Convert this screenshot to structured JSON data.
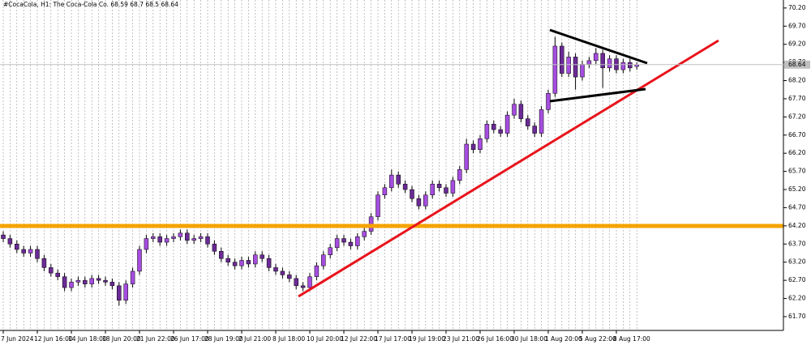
{
  "chart_data": {
    "type": "candlestick",
    "symbol": "#CocaCola, H1:",
    "instrument": "The Coca-Cola Co.",
    "categories": [
      "7 Jun 2024",
      null,
      null,
      null,
      null,
      "12 Jun 16:00",
      null,
      null,
      null,
      null,
      "14 Jun 18:00",
      null,
      null,
      null,
      null,
      "18 Jun 20:00",
      null,
      null,
      null,
      null,
      "21 Jun 22:00",
      null,
      null,
      null,
      null,
      "26 Jun 17:00",
      null,
      null,
      null,
      null,
      "28 Jun 19:00",
      null,
      null,
      null,
      null,
      "2 Jul 21:00",
      null,
      null,
      null,
      null,
      "8 Jul 18:00",
      null,
      null,
      null,
      null,
      "10 Jul 20:00",
      null,
      null,
      null,
      null,
      "12 Jul 22:00",
      null,
      null,
      null,
      null,
      "17 Jul 17:00",
      null,
      null,
      null,
      null,
      "19 Jul 19:00",
      null,
      null,
      null,
      null,
      "23 Jul 21:00",
      null,
      null,
      null,
      null,
      "26 Jul 16:00",
      null,
      null,
      null,
      null,
      "30 Jul 18:00",
      null,
      null,
      null,
      null,
      "1 Aug 20:00",
      null,
      null,
      null,
      null,
      "5 Aug 22:00",
      null,
      null,
      null,
      null,
      "8 Aug 17:00",
      null,
      null,
      null
    ],
    "open": [
      63.95,
      63.85,
      63.7,
      63.55,
      63.45,
      63.55,
      63.3,
      63.05,
      62.9,
      62.8,
      62.5,
      62.65,
      62.7,
      62.6,
      62.75,
      62.7,
      62.65,
      62.55,
      62.15,
      62.6,
      62.95,
      63.55,
      63.85,
      63.9,
      63.75,
      63.85,
      63.9,
      64.0,
      63.8,
      63.85,
      63.9,
      63.7,
      63.5,
      63.3,
      63.2,
      63.1,
      63.25,
      63.15,
      63.4,
      63.3,
      63.05,
      62.95,
      62.85,
      62.75,
      62.55,
      62.5,
      62.8,
      63.1,
      63.4,
      63.6,
      63.85,
      63.75,
      63.65,
      63.9,
      64.05,
      64.45,
      65.05,
      65.25,
      65.6,
      65.35,
      65.2,
      64.95,
      64.75,
      65.05,
      65.35,
      65.25,
      65.1,
      65.45,
      65.75,
      66.45,
      66.3,
      66.6,
      67.0,
      66.85,
      66.75,
      67.25,
      67.55,
      67.15,
      66.95,
      66.75,
      67.4,
      67.85,
      69.15,
      68.4,
      68.85,
      68.3,
      68.65,
      68.75,
      68.95,
      68.55,
      68.8,
      68.5,
      68.7,
      68.59
    ],
    "high": [
      64.05,
      63.95,
      63.8,
      63.65,
      63.65,
      63.65,
      63.4,
      63.15,
      63.0,
      62.9,
      62.75,
      62.8,
      62.8,
      62.85,
      62.85,
      62.8,
      62.75,
      62.65,
      62.7,
      63.05,
      63.65,
      63.95,
      64.0,
      64.0,
      63.95,
      64.0,
      64.1,
      64.1,
      63.95,
      64.0,
      64.0,
      63.8,
      63.6,
      63.4,
      63.3,
      63.35,
      63.35,
      63.5,
      63.5,
      63.4,
      63.15,
      63.05,
      62.95,
      62.85,
      62.65,
      62.9,
      63.2,
      63.5,
      63.7,
      63.95,
      63.95,
      63.85,
      64.0,
      64.15,
      64.55,
      65.15,
      65.35,
      65.75,
      65.7,
      65.45,
      65.3,
      65.05,
      65.15,
      65.45,
      65.45,
      65.35,
      65.55,
      65.85,
      66.6,
      66.55,
      66.7,
      67.1,
      67.1,
      66.95,
      67.35,
      67.7,
      67.65,
      67.25,
      67.05,
      67.5,
      67.95,
      69.4,
      69.25,
      69.0,
      68.95,
      68.75,
      68.85,
      69.1,
      69.05,
      68.9,
      68.9,
      68.8,
      68.8,
      68.7
    ],
    "low": [
      63.75,
      63.6,
      63.45,
      63.35,
      63.35,
      63.2,
      62.95,
      62.8,
      62.7,
      62.4,
      62.4,
      62.55,
      62.5,
      62.5,
      62.6,
      62.55,
      62.45,
      62.0,
      62.05,
      62.5,
      62.85,
      63.45,
      63.75,
      63.65,
      63.65,
      63.75,
      63.8,
      63.7,
      63.7,
      63.75,
      63.6,
      63.4,
      63.2,
      63.1,
      63.0,
      63.0,
      63.05,
      63.05,
      63.2,
      62.95,
      62.85,
      62.75,
      62.65,
      62.45,
      62.4,
      62.4,
      62.7,
      63.0,
      63.3,
      63.5,
      63.65,
      63.55,
      63.55,
      63.8,
      63.95,
      64.35,
      64.95,
      65.15,
      65.25,
      65.1,
      64.85,
      64.65,
      64.65,
      64.95,
      65.15,
      65.0,
      65.0,
      65.35,
      65.65,
      66.2,
      66.2,
      66.5,
      66.75,
      66.65,
      66.65,
      67.15,
      67.05,
      66.85,
      66.65,
      66.65,
      67.3,
      67.75,
      68.3,
      68.3,
      67.95,
      68.2,
      68.55,
      68.65,
      68.0,
      68.45,
      68.4,
      68.4,
      68.45,
      68.5
    ],
    "close": [
      63.85,
      63.7,
      63.55,
      63.45,
      63.55,
      63.3,
      63.05,
      62.9,
      62.8,
      62.5,
      62.65,
      62.7,
      62.6,
      62.75,
      62.7,
      62.65,
      62.55,
      62.15,
      62.6,
      62.95,
      63.55,
      63.85,
      63.9,
      63.75,
      63.85,
      63.9,
      64.0,
      63.8,
      63.85,
      63.9,
      63.7,
      63.5,
      63.3,
      63.2,
      63.1,
      63.25,
      63.15,
      63.4,
      63.3,
      63.05,
      62.95,
      62.85,
      62.75,
      62.55,
      62.5,
      62.8,
      63.1,
      63.4,
      63.6,
      63.85,
      63.75,
      63.65,
      63.9,
      64.05,
      64.45,
      65.05,
      65.25,
      65.6,
      65.35,
      65.2,
      64.95,
      64.75,
      65.05,
      65.35,
      65.25,
      65.1,
      65.45,
      65.75,
      66.45,
      66.3,
      66.6,
      67.0,
      66.85,
      66.75,
      67.25,
      67.55,
      67.15,
      66.95,
      66.75,
      67.4,
      67.85,
      69.15,
      68.4,
      68.85,
      68.3,
      68.65,
      68.75,
      68.95,
      68.55,
      68.8,
      68.5,
      68.7,
      68.55,
      68.64
    ],
    "ylim": [
      61.32,
      70.42
    ],
    "yticks": [
      {
        "value": 61.7,
        "label": "61.70"
      },
      {
        "value": 62.2,
        "label": "62.20"
      },
      {
        "value": 62.7,
        "label": "62.70"
      },
      {
        "value": 63.2,
        "label": "63.20"
      },
      {
        "value": 63.7,
        "label": "63.70"
      },
      {
        "value": 64.2,
        "label": "64.20"
      },
      {
        "value": 64.7,
        "label": "64.70"
      },
      {
        "value": 65.2,
        "label": "65.20"
      },
      {
        "value": 65.7,
        "label": "65.70"
      },
      {
        "value": 66.2,
        "label": "66.20"
      },
      {
        "value": 66.7,
        "label": "66.70"
      },
      {
        "value": 67.2,
        "label": "67.20"
      },
      {
        "value": 67.7,
        "label": "67.70"
      },
      {
        "value": 68.2,
        "label": "68.20"
      },
      {
        "value": 68.7,
        "label": "68.70"
      },
      {
        "value": 69.2,
        "label": "69.20"
      },
      {
        "value": 69.7,
        "label": "69.70"
      },
      {
        "value": 70.2,
        "label": "70.20"
      }
    ],
    "bull_color": "#a64de0",
    "bear_color": "#6b2a96",
    "wick_color": "#000000"
  }
}
